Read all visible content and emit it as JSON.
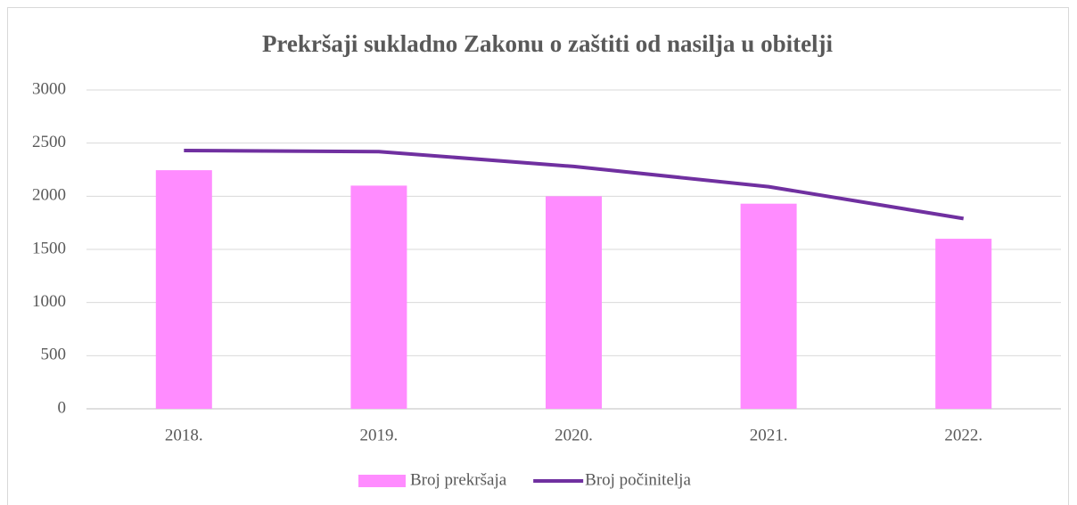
{
  "chart_data": {
    "type": "bar",
    "title": "Prekršaji sukladno Zakonu o zaštiti od nasilja u obitelji",
    "categories": [
      "2018.",
      "2019.",
      "2020.",
      "2021.",
      "2022."
    ],
    "series": [
      {
        "name": "Broj prekršaja",
        "type": "bar",
        "color": "#ff8cff",
        "values": [
          2245,
          2100,
          2000,
          1930,
          1600
        ]
      },
      {
        "name": "Broj počinitelja",
        "type": "line",
        "color": "#7030a0",
        "values": [
          2430,
          2420,
          2280,
          2090,
          1790
        ]
      }
    ],
    "ylim": [
      0,
      3000
    ],
    "yticks": [
      0,
      500,
      1000,
      1500,
      2000,
      2500,
      3000
    ],
    "grid": true,
    "legend": "bottom"
  }
}
